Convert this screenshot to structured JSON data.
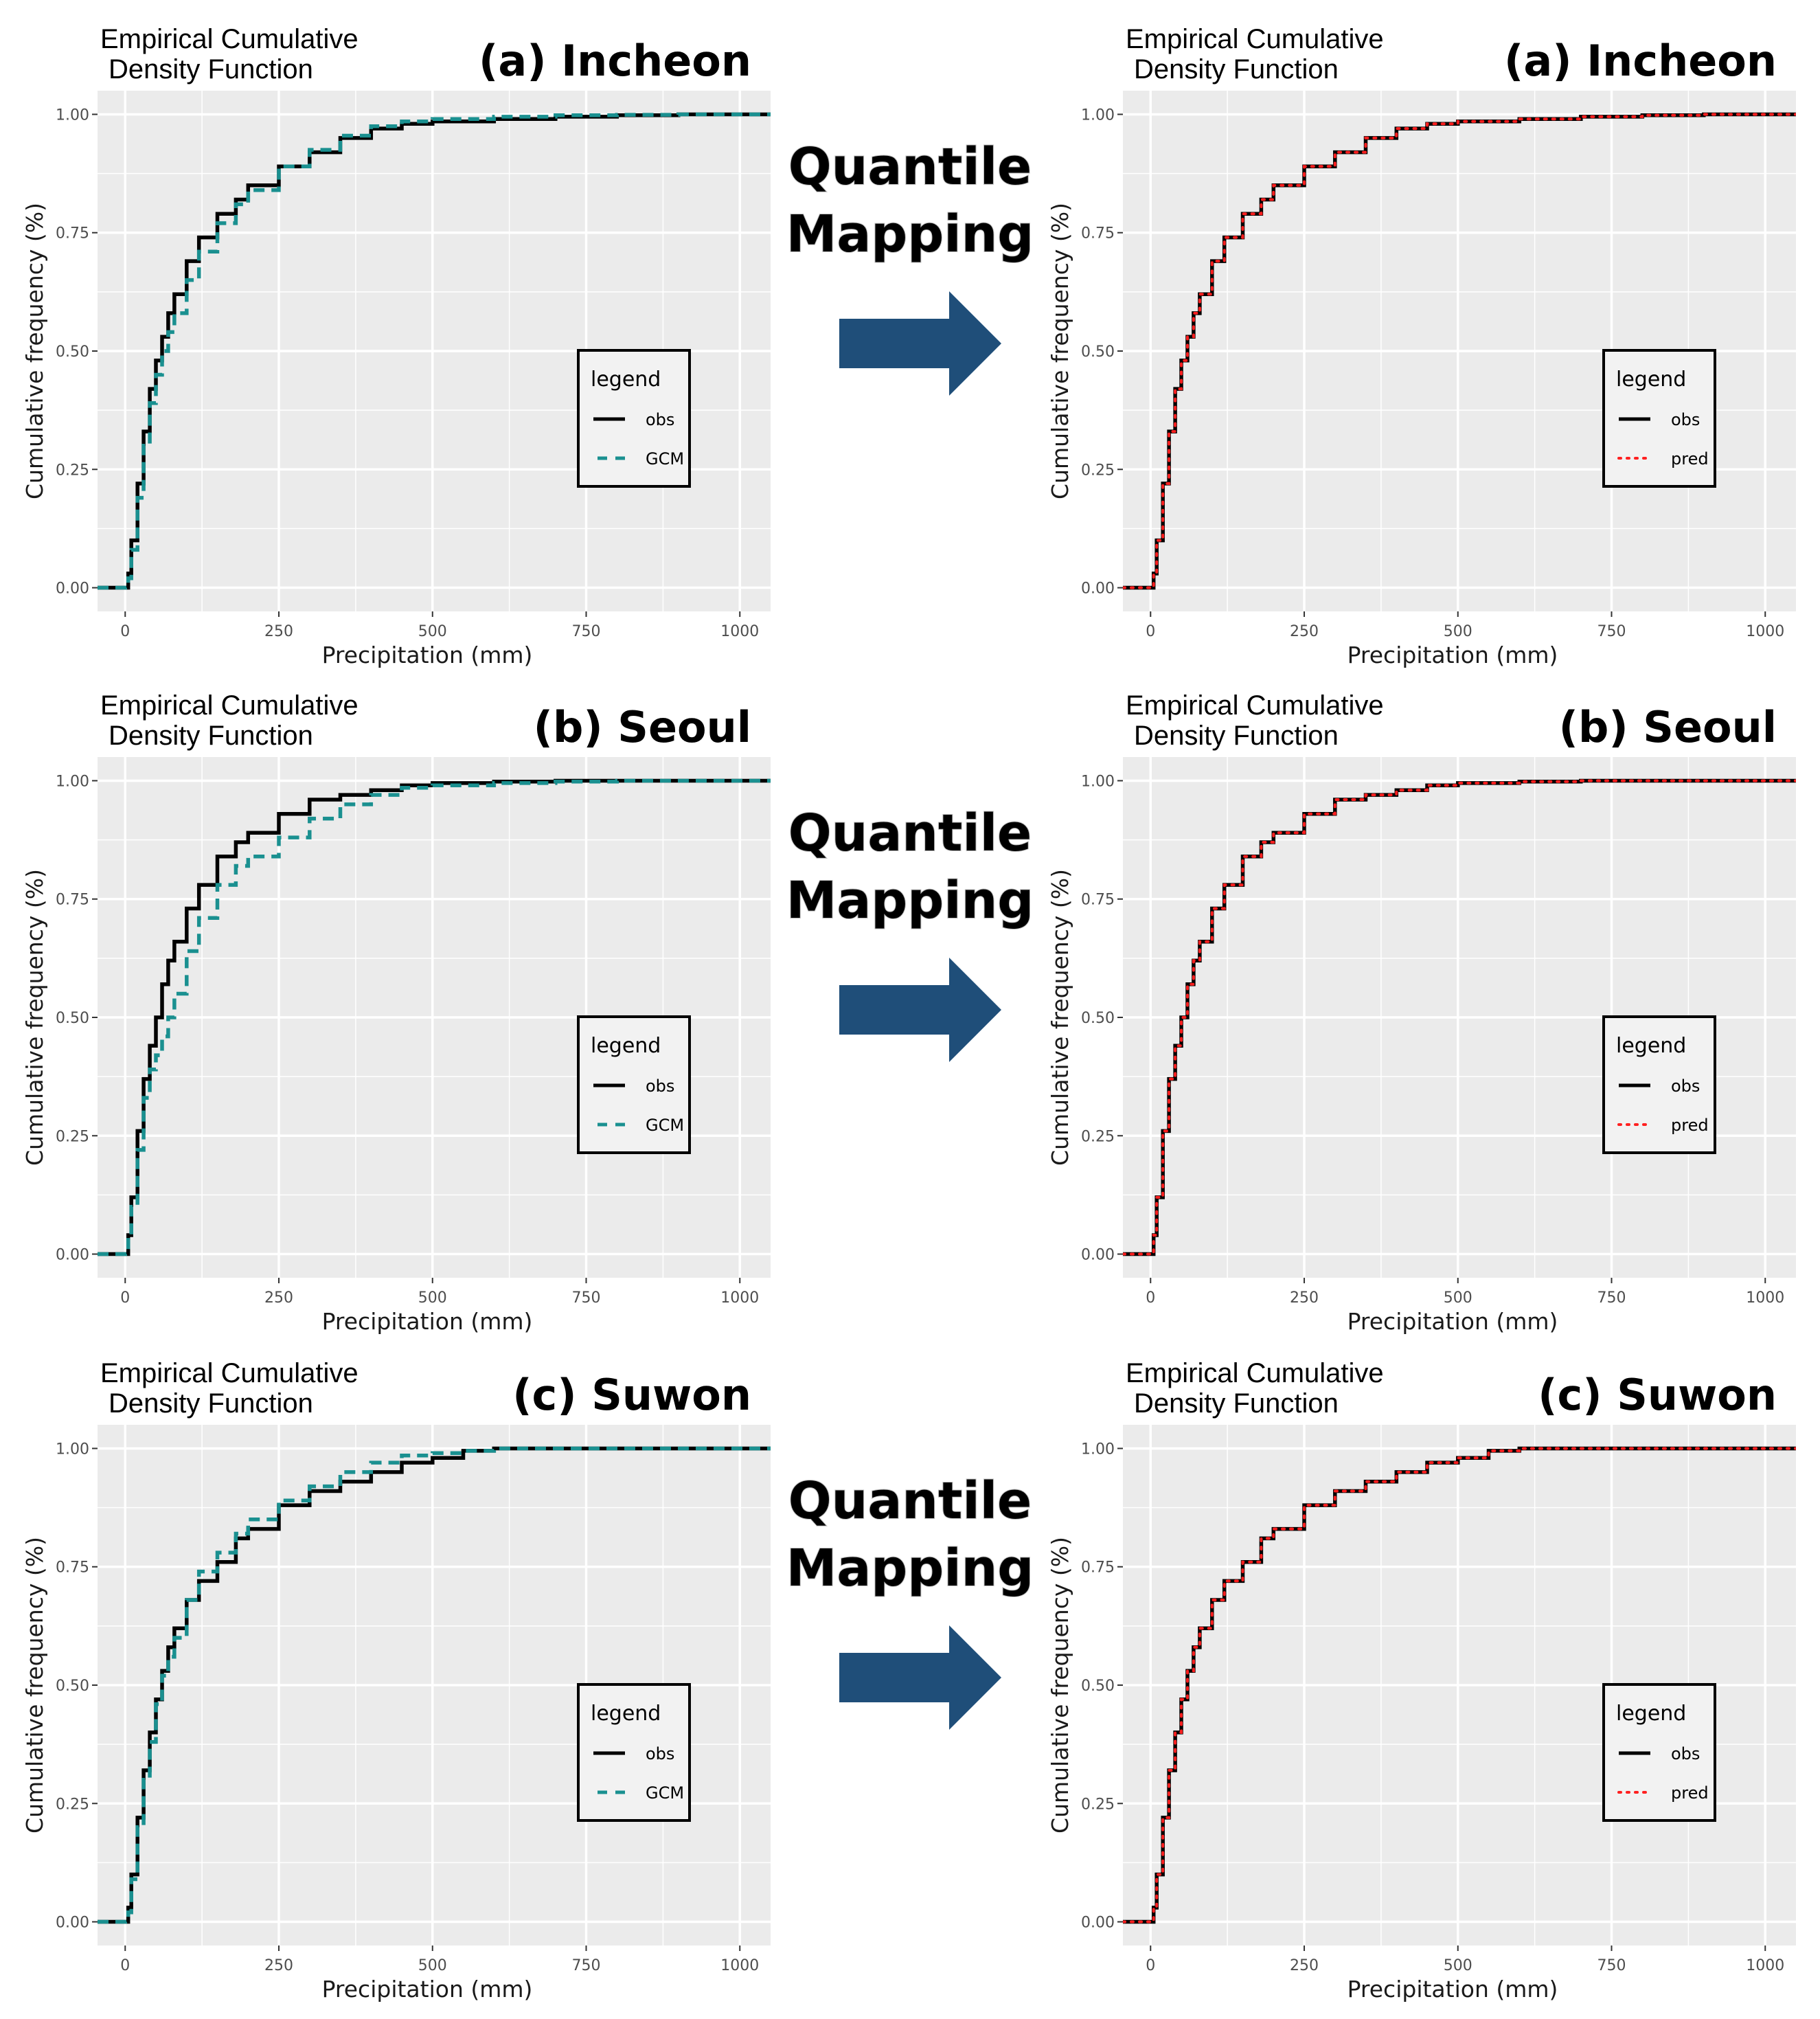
{
  "colors": {
    "panel_bg": "#ebebeb",
    "grid": "#ffffff",
    "obs": "#000000",
    "gcm": "#1a9090",
    "pred": "#ff2020",
    "arrow": "#1f4e79"
  },
  "arrow_text_lines": [
    "Quantile",
    "Mapping"
  ],
  "chart_data": [
    {
      "type": "line",
      "row": 0,
      "col": 0,
      "label": "(a) Incheon",
      "title": [
        "Empirical Cumulative",
        "Density Function"
      ],
      "xlabel": "Precipitation (mm)",
      "ylabel": "Cumulative frequency (%)",
      "xlim": [
        -45,
        1050
      ],
      "ylim": [
        -0.05,
        1.05
      ],
      "xticks": [
        0,
        250,
        500,
        750,
        1000
      ],
      "xtick_labels": [
        "0",
        "250",
        "500",
        "750",
        "1000"
      ],
      "yticks": [
        0,
        0.25,
        0.5,
        0.75,
        1.0
      ],
      "ytick_labels": [
        "0.00",
        "0.25",
        "0.50",
        "0.75",
        "1.00"
      ],
      "legend": {
        "title": "legend",
        "position": "right-center",
        "entries": [
          {
            "name": "obs",
            "style": "solid"
          },
          {
            "name": "GCM",
            "style": "dashed"
          }
        ]
      },
      "series": [
        {
          "name": "obs",
          "style": "solid",
          "x": [
            -45,
            0,
            5,
            10,
            20,
            30,
            40,
            50,
            60,
            70,
            80,
            100,
            120,
            150,
            180,
            200,
            250,
            300,
            350,
            400,
            450,
            500,
            600,
            700,
            800,
            900,
            1050
          ],
          "y": [
            0,
            0,
            0.03,
            0.1,
            0.22,
            0.33,
            0.42,
            0.48,
            0.53,
            0.58,
            0.62,
            0.69,
            0.74,
            0.79,
            0.82,
            0.85,
            0.89,
            0.92,
            0.95,
            0.97,
            0.98,
            0.985,
            0.99,
            0.995,
            0.998,
            1.0,
            1.0
          ]
        },
        {
          "name": "GCM",
          "style": "dashed",
          "x": [
            -45,
            0,
            5,
            10,
            20,
            30,
            40,
            50,
            60,
            70,
            80,
            100,
            120,
            150,
            180,
            200,
            250,
            300,
            350,
            400,
            450,
            500,
            600,
            700,
            800,
            900,
            1050
          ],
          "y": [
            0,
            0,
            0.02,
            0.08,
            0.19,
            0.3,
            0.39,
            0.45,
            0.5,
            0.54,
            0.58,
            0.65,
            0.71,
            0.77,
            0.81,
            0.84,
            0.89,
            0.925,
            0.955,
            0.975,
            0.985,
            0.99,
            0.995,
            0.998,
            0.999,
            1.0,
            1.0
          ]
        }
      ]
    },
    {
      "type": "line",
      "row": 0,
      "col": 1,
      "label": "(a) Incheon",
      "title": [
        "Empirical Cumulative",
        "Density Function"
      ],
      "xlabel": "Precipitation (mm)",
      "ylabel": "Cumulative frequency (%)",
      "xlim": [
        -45,
        1050
      ],
      "ylim": [
        -0.05,
        1.05
      ],
      "xticks": [
        0,
        250,
        500,
        750,
        1000
      ],
      "xtick_labels": [
        "0",
        "250",
        "500",
        "750",
        "1000"
      ],
      "yticks": [
        0,
        0.25,
        0.5,
        0.75,
        1.0
      ],
      "ytick_labels": [
        "0.00",
        "0.25",
        "0.50",
        "0.75",
        "1.00"
      ],
      "legend": {
        "title": "legend",
        "position": "right-center",
        "entries": [
          {
            "name": "obs",
            "style": "solid"
          },
          {
            "name": "pred",
            "style": "dotted"
          }
        ]
      },
      "series": [
        {
          "name": "obs",
          "style": "solid",
          "x": [
            -45,
            0,
            5,
            10,
            20,
            30,
            40,
            50,
            60,
            70,
            80,
            100,
            120,
            150,
            180,
            200,
            250,
            300,
            350,
            400,
            450,
            500,
            600,
            700,
            800,
            900,
            1050
          ],
          "y": [
            0,
            0,
            0.03,
            0.1,
            0.22,
            0.33,
            0.42,
            0.48,
            0.53,
            0.58,
            0.62,
            0.69,
            0.74,
            0.79,
            0.82,
            0.85,
            0.89,
            0.92,
            0.95,
            0.97,
            0.98,
            0.985,
            0.99,
            0.995,
            0.998,
            1.0,
            1.0
          ]
        },
        {
          "name": "pred",
          "style": "dotted",
          "x": [
            -45,
            0,
            5,
            10,
            20,
            30,
            40,
            50,
            60,
            70,
            80,
            100,
            120,
            150,
            180,
            200,
            250,
            300,
            350,
            400,
            450,
            500,
            600,
            700,
            800,
            900,
            1050
          ],
          "y": [
            0,
            0,
            0.03,
            0.1,
            0.22,
            0.33,
            0.42,
            0.48,
            0.53,
            0.58,
            0.62,
            0.69,
            0.74,
            0.79,
            0.82,
            0.85,
            0.89,
            0.92,
            0.95,
            0.97,
            0.98,
            0.985,
            0.99,
            0.995,
            0.998,
            1.0,
            1.0
          ]
        }
      ]
    },
    {
      "type": "line",
      "row": 1,
      "col": 0,
      "label": "(b) Seoul",
      "title": [
        "Empirical Cumulative",
        "Density Function"
      ],
      "xlabel": "Precipitation (mm)",
      "ylabel": "Cumulative frequency (%)",
      "xlim": [
        -45,
        1050
      ],
      "ylim": [
        -0.05,
        1.05
      ],
      "xticks": [
        0,
        250,
        500,
        750,
        1000
      ],
      "xtick_labels": [
        "0",
        "250",
        "500",
        "750",
        "1000"
      ],
      "yticks": [
        0,
        0.25,
        0.5,
        0.75,
        1.0
      ],
      "ytick_labels": [
        "0.00",
        "0.25",
        "0.50",
        "0.75",
        "1.00"
      ],
      "legend": {
        "title": "legend",
        "position": "right-center",
        "entries": [
          {
            "name": "obs",
            "style": "solid"
          },
          {
            "name": "GCM",
            "style": "dashed"
          }
        ]
      },
      "series": [
        {
          "name": "obs",
          "style": "solid",
          "x": [
            -45,
            0,
            5,
            10,
            20,
            30,
            40,
            50,
            60,
            70,
            80,
            100,
            120,
            150,
            180,
            200,
            250,
            300,
            350,
            400,
            450,
            500,
            600,
            700,
            800,
            900,
            1050
          ],
          "y": [
            0,
            0,
            0.04,
            0.12,
            0.26,
            0.37,
            0.44,
            0.5,
            0.57,
            0.62,
            0.66,
            0.73,
            0.78,
            0.84,
            0.87,
            0.89,
            0.93,
            0.96,
            0.97,
            0.98,
            0.99,
            0.995,
            0.998,
            1.0,
            1.0,
            1.0,
            1.0
          ]
        },
        {
          "name": "GCM",
          "style": "dashed",
          "x": [
            -45,
            0,
            5,
            10,
            20,
            30,
            40,
            50,
            60,
            70,
            80,
            100,
            120,
            150,
            180,
            200,
            250,
            300,
            350,
            400,
            450,
            500,
            600,
            700,
            800,
            900,
            1050
          ],
          "y": [
            0,
            0,
            0.03,
            0.1,
            0.22,
            0.33,
            0.39,
            0.42,
            0.46,
            0.5,
            0.55,
            0.64,
            0.71,
            0.78,
            0.82,
            0.84,
            0.88,
            0.92,
            0.95,
            0.97,
            0.985,
            0.99,
            0.995,
            0.998,
            1.0,
            1.0,
            1.0
          ]
        }
      ]
    },
    {
      "type": "line",
      "row": 1,
      "col": 1,
      "label": "(b) Seoul",
      "title": [
        "Empirical Cumulative",
        "Density Function"
      ],
      "xlabel": "Precipitation (mm)",
      "ylabel": "Cumulative frequency (%)",
      "xlim": [
        -45,
        1050
      ],
      "ylim": [
        -0.05,
        1.05
      ],
      "xticks": [
        0,
        250,
        500,
        750,
        1000
      ],
      "xtick_labels": [
        "0",
        "250",
        "500",
        "750",
        "1000"
      ],
      "yticks": [
        0,
        0.25,
        0.5,
        0.75,
        1.0
      ],
      "ytick_labels": [
        "0.00",
        "0.25",
        "0.50",
        "0.75",
        "1.00"
      ],
      "legend": {
        "title": "legend",
        "position": "right-center",
        "entries": [
          {
            "name": "obs",
            "style": "solid"
          },
          {
            "name": "pred",
            "style": "dotted"
          }
        ]
      },
      "series": [
        {
          "name": "obs",
          "style": "solid",
          "x": [
            -45,
            0,
            5,
            10,
            20,
            30,
            40,
            50,
            60,
            70,
            80,
            100,
            120,
            150,
            180,
            200,
            250,
            300,
            350,
            400,
            450,
            500,
            600,
            700,
            800,
            900,
            1050
          ],
          "y": [
            0,
            0,
            0.04,
            0.12,
            0.26,
            0.37,
            0.44,
            0.5,
            0.57,
            0.62,
            0.66,
            0.73,
            0.78,
            0.84,
            0.87,
            0.89,
            0.93,
            0.96,
            0.97,
            0.98,
            0.99,
            0.995,
            0.998,
            1.0,
            1.0,
            1.0,
            1.0
          ]
        },
        {
          "name": "pred",
          "style": "dotted",
          "x": [
            -45,
            0,
            5,
            10,
            20,
            30,
            40,
            50,
            60,
            70,
            80,
            100,
            120,
            150,
            180,
            200,
            250,
            300,
            350,
            400,
            450,
            500,
            600,
            700,
            800,
            900,
            1050
          ],
          "y": [
            0,
            0,
            0.04,
            0.12,
            0.26,
            0.37,
            0.44,
            0.5,
            0.57,
            0.62,
            0.66,
            0.73,
            0.78,
            0.84,
            0.87,
            0.89,
            0.93,
            0.96,
            0.97,
            0.98,
            0.99,
            0.995,
            0.998,
            1.0,
            1.0,
            1.0,
            1.0
          ]
        }
      ]
    },
    {
      "type": "line",
      "row": 2,
      "col": 0,
      "label": "(c) Suwon",
      "title": [
        "Empirical Cumulative",
        "Density Function"
      ],
      "xlabel": "Precipitation (mm)",
      "ylabel": "Cumulative frequency (%)",
      "xlim": [
        -45,
        1050
      ],
      "ylim": [
        -0.05,
        1.05
      ],
      "xticks": [
        0,
        250,
        500,
        750,
        1000
      ],
      "xtick_labels": [
        "0",
        "250",
        "500",
        "750",
        "1000"
      ],
      "yticks": [
        0,
        0.25,
        0.5,
        0.75,
        1.0
      ],
      "ytick_labels": [
        "0.00",
        "0.25",
        "0.50",
        "0.75",
        "1.00"
      ],
      "legend": {
        "title": "legend",
        "position": "right-center",
        "entries": [
          {
            "name": "obs",
            "style": "solid"
          },
          {
            "name": "GCM",
            "style": "dashed"
          }
        ]
      },
      "series": [
        {
          "name": "obs",
          "style": "solid",
          "x": [
            -45,
            0,
            5,
            10,
            20,
            30,
            40,
            50,
            60,
            70,
            80,
            100,
            120,
            150,
            180,
            200,
            250,
            300,
            350,
            400,
            450,
            500,
            550,
            600,
            800,
            900,
            1050
          ],
          "y": [
            0,
            0,
            0.03,
            0.1,
            0.22,
            0.32,
            0.4,
            0.47,
            0.53,
            0.58,
            0.62,
            0.68,
            0.72,
            0.76,
            0.81,
            0.83,
            0.88,
            0.91,
            0.93,
            0.95,
            0.97,
            0.98,
            0.995,
            1.0,
            1.0,
            1.0,
            1.0
          ]
        },
        {
          "name": "GCM",
          "style": "dashed",
          "x": [
            -45,
            0,
            5,
            10,
            20,
            30,
            40,
            50,
            60,
            70,
            80,
            100,
            120,
            150,
            180,
            200,
            250,
            300,
            350,
            400,
            450,
            500,
            550,
            600,
            800,
            900,
            1050
          ],
          "y": [
            0,
            0,
            0.02,
            0.09,
            0.2,
            0.3,
            0.38,
            0.46,
            0.52,
            0.56,
            0.6,
            0.68,
            0.74,
            0.78,
            0.82,
            0.85,
            0.89,
            0.92,
            0.95,
            0.97,
            0.985,
            0.99,
            0.995,
            1.0,
            1.0,
            1.0,
            1.0
          ]
        }
      ]
    },
    {
      "type": "line",
      "row": 2,
      "col": 1,
      "label": "(c) Suwon",
      "title": [
        "Empirical Cumulative",
        "Density Function"
      ],
      "xlabel": "Precipitation (mm)",
      "ylabel": "Cumulative frequency (%)",
      "xlim": [
        -45,
        1050
      ],
      "ylim": [
        -0.05,
        1.05
      ],
      "xticks": [
        0,
        250,
        500,
        750,
        1000
      ],
      "xtick_labels": [
        "0",
        "250",
        "500",
        "750",
        "1000"
      ],
      "yticks": [
        0,
        0.25,
        0.5,
        0.75,
        1.0
      ],
      "ytick_labels": [
        "0.00",
        "0.25",
        "0.50",
        "0.75",
        "1.00"
      ],
      "legend": {
        "title": "legend",
        "position": "right-center",
        "entries": [
          {
            "name": "obs",
            "style": "solid"
          },
          {
            "name": "pred",
            "style": "dotted"
          }
        ]
      },
      "series": [
        {
          "name": "obs",
          "style": "solid",
          "x": [
            -45,
            0,
            5,
            10,
            20,
            30,
            40,
            50,
            60,
            70,
            80,
            100,
            120,
            150,
            180,
            200,
            250,
            300,
            350,
            400,
            450,
            500,
            550,
            600,
            800,
            900,
            1050
          ],
          "y": [
            0,
            0,
            0.03,
            0.1,
            0.22,
            0.32,
            0.4,
            0.47,
            0.53,
            0.58,
            0.62,
            0.68,
            0.72,
            0.76,
            0.81,
            0.83,
            0.88,
            0.91,
            0.93,
            0.95,
            0.97,
            0.98,
            0.995,
            1.0,
            1.0,
            1.0,
            1.0
          ]
        },
        {
          "name": "pred",
          "style": "dotted",
          "x": [
            -45,
            0,
            5,
            10,
            20,
            30,
            40,
            50,
            60,
            70,
            80,
            100,
            120,
            150,
            180,
            200,
            250,
            300,
            350,
            400,
            450,
            500,
            550,
            600,
            800,
            900,
            1050
          ],
          "y": [
            0,
            0,
            0.03,
            0.1,
            0.22,
            0.32,
            0.4,
            0.47,
            0.53,
            0.58,
            0.62,
            0.68,
            0.72,
            0.76,
            0.81,
            0.83,
            0.88,
            0.91,
            0.93,
            0.95,
            0.97,
            0.98,
            0.995,
            1.0,
            1.0,
            1.0,
            1.0
          ]
        }
      ]
    }
  ]
}
